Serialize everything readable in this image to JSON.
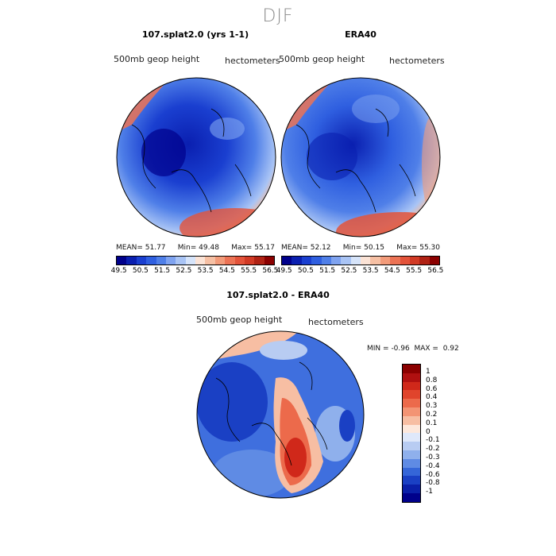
{
  "season": "DJF",
  "panels": [
    {
      "title": "107.splat2.0 (yrs 1-1)",
      "field": "500mb geop height",
      "units": "hectometers",
      "mean": "51.77",
      "min": "49.48",
      "max": "55.17"
    },
    {
      "title": "ERA40",
      "field": "500mb geop height",
      "units": "hectometers",
      "mean": "52.12",
      "min": "50.15",
      "max": "55.30"
    }
  ],
  "stat_labels": {
    "mean": "MEAN=",
    "min": "Min=",
    "max": "Max="
  },
  "colorbar_top": {
    "labels": [
      "49.5",
      "50.5",
      "51.5",
      "52.5",
      "53.5",
      "54.5",
      "55.5",
      "56.5"
    ],
    "colors": [
      "#00008b",
      "#0a1fb0",
      "#1a3fd0",
      "#2f5fe0",
      "#4f7fe8",
      "#7fa3f0",
      "#a9c4f5",
      "#d6e4fa",
      "#fbe3d6",
      "#f6c0a4",
      "#f29b7a",
      "#ec7355",
      "#e3533a",
      "#d13a25",
      "#b02214",
      "#8b0000"
    ]
  },
  "diff": {
    "title": "107.splat2.0 - ERA40",
    "field": "500mb geop height",
    "units": "hectometers",
    "min_label": "MIN =",
    "min": "-0.96",
    "max_label": "MAX =",
    "max": "0.92",
    "legend": [
      "1",
      "0.8",
      "0.6",
      "0.4",
      "0.3",
      "0.2",
      "0.1",
      "0",
      "-0.1",
      "-0.2",
      "-0.3",
      "-0.4",
      "-0.6",
      "-0.8",
      "-1"
    ],
    "colors": [
      "#8b0000",
      "#b01010",
      "#d0281a",
      "#e0442c",
      "#ec6a4b",
      "#f39474",
      "#f7bea3",
      "#fde8dc",
      "#dfe8fa",
      "#b8ccf2",
      "#8fb0ec",
      "#5f8be4",
      "#3566d8",
      "#1a40c4",
      "#0a1fa8",
      "#00008b"
    ]
  }
}
